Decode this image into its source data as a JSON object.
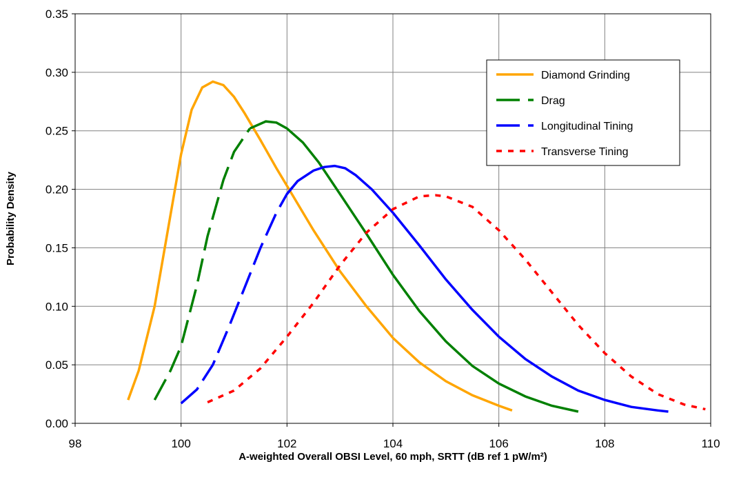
{
  "chart_data": {
    "type": "line",
    "xlabel": "A-weighted Overall OBSI Level, 60 mph, SRTT (dB ref 1 pW/m²)",
    "ylabel": "Probability Density",
    "xlim": [
      98,
      110
    ],
    "ylim": [
      0,
      0.35
    ],
    "x_ticks": [
      "98",
      "100",
      "102",
      "104",
      "106",
      "108",
      "110"
    ],
    "y_ticks": [
      "0.00",
      "0.05",
      "0.10",
      "0.15",
      "0.20",
      "0.25",
      "0.30",
      "0.35"
    ],
    "grid": "major x and y gridlines",
    "legend_position": "top-right",
    "series": [
      {
        "name": "Diamond Grinding",
        "color": "#FFA500",
        "dash": "solid",
        "x": [
          99.0,
          99.2,
          99.5,
          99.8,
          100.0,
          100.2,
          100.4,
          100.6,
          100.8,
          101.0,
          101.2,
          101.5,
          101.8,
          102.0,
          102.5,
          103.0,
          103.5,
          104.0,
          104.5,
          105.0,
          105.5,
          106.0,
          106.25
        ],
        "y": [
          0.02,
          0.045,
          0.1,
          0.178,
          0.23,
          0.268,
          0.287,
          0.292,
          0.289,
          0.279,
          0.265,
          0.242,
          0.218,
          0.203,
          0.165,
          0.13,
          0.1,
          0.073,
          0.052,
          0.036,
          0.024,
          0.015,
          0.011
        ]
      },
      {
        "name": "Drag",
        "color": "#008000",
        "dash": "long-dash then solid",
        "x": [
          99.5,
          99.8,
          100.0,
          100.3,
          100.5,
          100.8,
          101.0,
          101.3,
          101.6,
          101.8,
          102.0,
          102.3,
          102.6,
          103.0,
          103.5,
          104.0,
          104.5,
          105.0,
          105.5,
          106.0,
          106.5,
          107.0,
          107.5
        ],
        "y": [
          0.02,
          0.045,
          0.066,
          0.118,
          0.16,
          0.208,
          0.232,
          0.252,
          0.258,
          0.257,
          0.252,
          0.24,
          0.223,
          0.196,
          0.162,
          0.127,
          0.096,
          0.07,
          0.049,
          0.034,
          0.023,
          0.015,
          0.01
        ]
      },
      {
        "name": "Longitudinal Tining",
        "color": "#0000FF",
        "dash": "long-dash then solid",
        "x": [
          100.0,
          100.3,
          100.6,
          100.9,
          101.2,
          101.5,
          101.8,
          102.0,
          102.2,
          102.5,
          102.7,
          102.9,
          103.1,
          103.3,
          103.6,
          104.0,
          104.5,
          105.0,
          105.5,
          106.0,
          106.5,
          107.0,
          107.5,
          108.0,
          108.5,
          109.0,
          109.2
        ],
        "y": [
          0.017,
          0.029,
          0.05,
          0.082,
          0.116,
          0.15,
          0.18,
          0.196,
          0.207,
          0.216,
          0.219,
          0.22,
          0.218,
          0.212,
          0.2,
          0.18,
          0.152,
          0.123,
          0.097,
          0.074,
          0.055,
          0.04,
          0.028,
          0.02,
          0.014,
          0.011,
          0.01
        ]
      },
      {
        "name": "Transverse Tining",
        "color": "#FF0000",
        "dash": "dotted",
        "x": [
          100.5,
          101.0,
          101.5,
          102.0,
          102.5,
          103.0,
          103.5,
          104.0,
          104.5,
          104.8,
          105.0,
          105.5,
          106.0,
          106.5,
          107.0,
          107.5,
          108.0,
          108.5,
          109.0,
          109.5,
          109.9
        ],
        "y": [
          0.018,
          0.028,
          0.047,
          0.074,
          0.103,
          0.135,
          0.163,
          0.183,
          0.194,
          0.195,
          0.194,
          0.185,
          0.165,
          0.14,
          0.112,
          0.084,
          0.06,
          0.04,
          0.025,
          0.016,
          0.012
        ]
      }
    ]
  }
}
